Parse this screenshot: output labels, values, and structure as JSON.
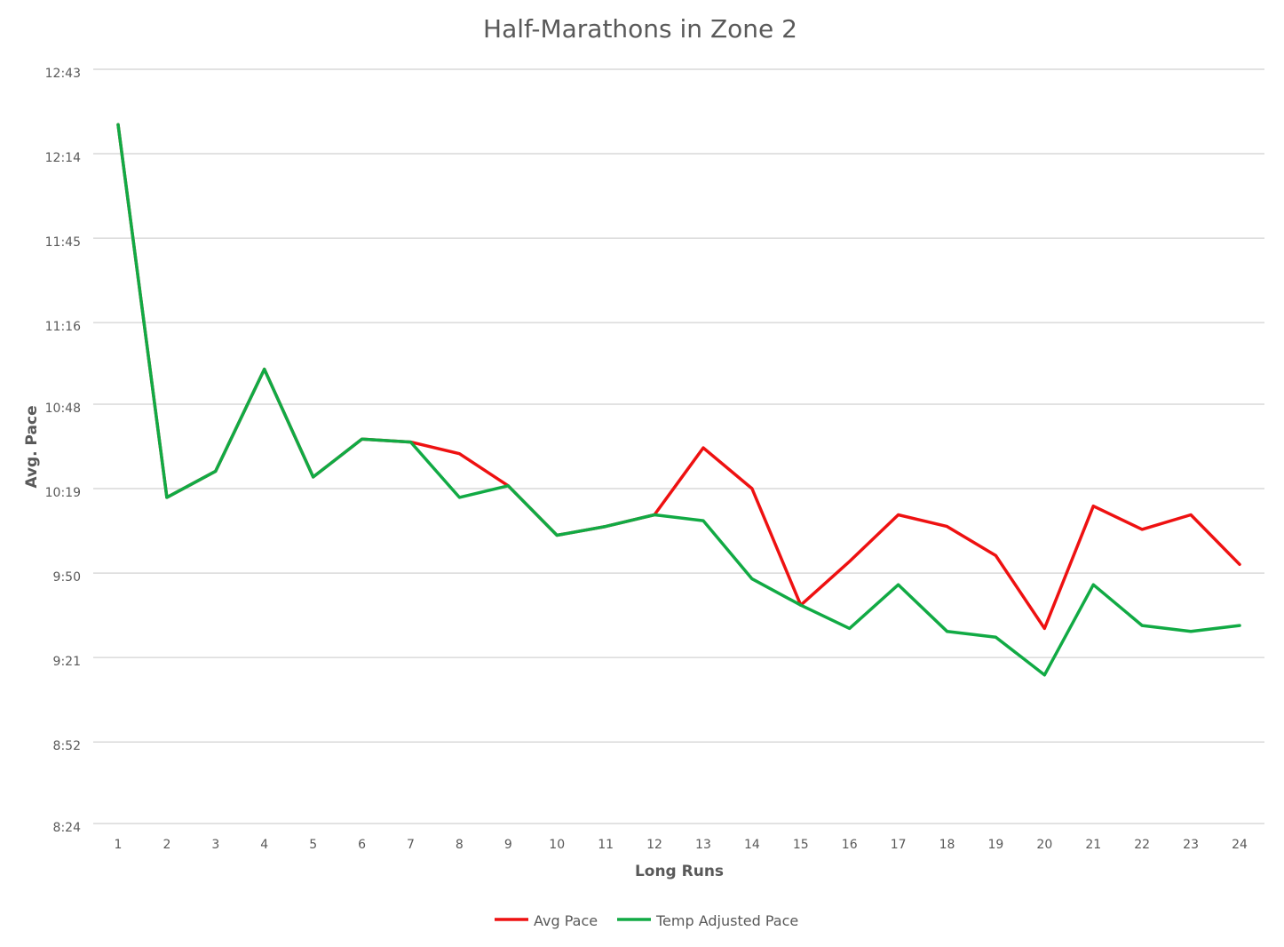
{
  "chart_data": {
    "type": "line",
    "title": "Half-Marathons in Zone 2",
    "xlabel": "Long Runs",
    "ylabel": "Avg. Pace",
    "x": [
      "1",
      "2",
      "3",
      "4",
      "5",
      "6",
      "7",
      "8",
      "9",
      "10",
      "11",
      "12",
      "13",
      "14",
      "15",
      "16",
      "17",
      "18",
      "19",
      "20",
      "21",
      "22",
      "23",
      "24"
    ],
    "y_ticks": [
      "8:24",
      "8:52",
      "9:21",
      "9:50",
      "10:19",
      "10:48",
      "11:16",
      "11:45",
      "12:14",
      "12:43"
    ],
    "ylim": [
      "8:24",
      "12:43"
    ],
    "grid": true,
    "legend_position": "bottom",
    "series": [
      {
        "name": "Avg Pace",
        "color": "#ee1111",
        "values": [
          "12:24",
          "10:16",
          "10:25",
          "11:00",
          "10:23",
          "10:36",
          "10:35",
          "10:31",
          "10:20",
          "10:03",
          "10:06",
          "10:10",
          "10:33",
          "10:19",
          "9:39",
          "9:54",
          "10:10",
          "10:06",
          "9:56",
          "9:31",
          "10:13",
          "10:05",
          "10:10",
          "9:53"
        ]
      },
      {
        "name": "Temp Adjusted Pace",
        "color": "#11aa44",
        "values": [
          "12:24",
          "10:16",
          "10:25",
          "11:00",
          "10:23",
          "10:36",
          "10:35",
          "10:16",
          "10:20",
          "10:03",
          "10:06",
          "10:10",
          "10:08",
          "9:48",
          "9:39",
          "9:31",
          "9:46",
          "9:30",
          "9:28",
          "9:15",
          "9:46",
          "9:32",
          "9:30",
          "9:32"
        ]
      }
    ]
  }
}
